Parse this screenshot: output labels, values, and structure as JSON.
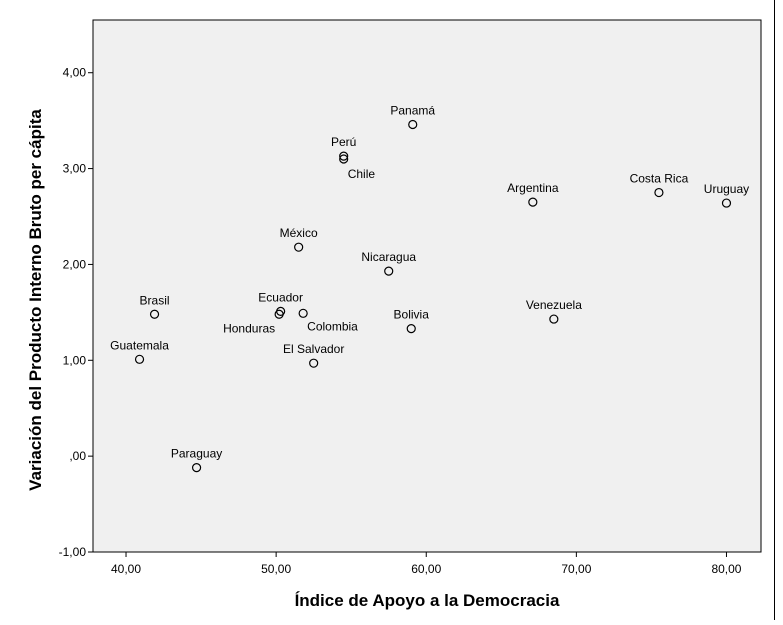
{
  "chart_data": {
    "type": "scatter",
    "title": "",
    "xlabel": "Índice de Apoyo a la Democracia",
    "ylabel": "Variación del Producto Interno Bruto per cápita",
    "xlim": [
      37.8,
      82.3
    ],
    "ylim": [
      -1.0,
      4.55
    ],
    "x_ticks": [
      40,
      50,
      60,
      70,
      80
    ],
    "x_tick_labels": [
      "40,00",
      "50,00",
      "60,00",
      "70,00",
      "80,00"
    ],
    "y_ticks": [
      -1,
      0,
      1,
      2,
      3,
      4
    ],
    "y_tick_labels": [
      "-1,00",
      ",00",
      "1,00",
      "2,00",
      "3,00",
      "4,00"
    ],
    "grid": false,
    "plot_background": "#f0f0f0",
    "marker_color": "#000000",
    "points": [
      {
        "label": "Panamá",
        "x": 59.1,
        "y": 3.46,
        "label_pos": "above"
      },
      {
        "label": "Perú",
        "x": 54.5,
        "y": 3.13,
        "label_pos": "above"
      },
      {
        "label": "Chile",
        "x": 54.5,
        "y": 3.1,
        "label_pos": "below"
      },
      {
        "label": "Argentina",
        "x": 67.1,
        "y": 2.65,
        "label_pos": "above"
      },
      {
        "label": "Costa Rica",
        "x": 75.5,
        "y": 2.75,
        "label_pos": "above"
      },
      {
        "label": "Uruguay",
        "x": 80.0,
        "y": 2.64,
        "label_pos": "above"
      },
      {
        "label": "México",
        "x": 51.5,
        "y": 2.18,
        "label_pos": "above"
      },
      {
        "label": "Nicaragua",
        "x": 57.5,
        "y": 1.93,
        "label_pos": "above"
      },
      {
        "label": "Brasil",
        "x": 41.9,
        "y": 1.48,
        "label_pos": "above"
      },
      {
        "label": "Ecuador",
        "x": 50.3,
        "y": 1.51,
        "label_pos": "above"
      },
      {
        "label": "Honduras",
        "x": 50.2,
        "y": 1.48,
        "label_pos": "belowleft"
      },
      {
        "label": "Colombia",
        "x": 51.8,
        "y": 1.49,
        "label_pos": "below"
      },
      {
        "label": "Venezuela",
        "x": 68.5,
        "y": 1.43,
        "label_pos": "above"
      },
      {
        "label": "Bolivia",
        "x": 59.0,
        "y": 1.33,
        "label_pos": "above"
      },
      {
        "label": "Guatemala",
        "x": 40.9,
        "y": 1.01,
        "label_pos": "above"
      },
      {
        "label": "El Salvador",
        "x": 52.5,
        "y": 0.97,
        "label_pos": "above"
      },
      {
        "label": "Paraguay",
        "x": 44.7,
        "y": -0.12,
        "label_pos": "above"
      }
    ]
  }
}
